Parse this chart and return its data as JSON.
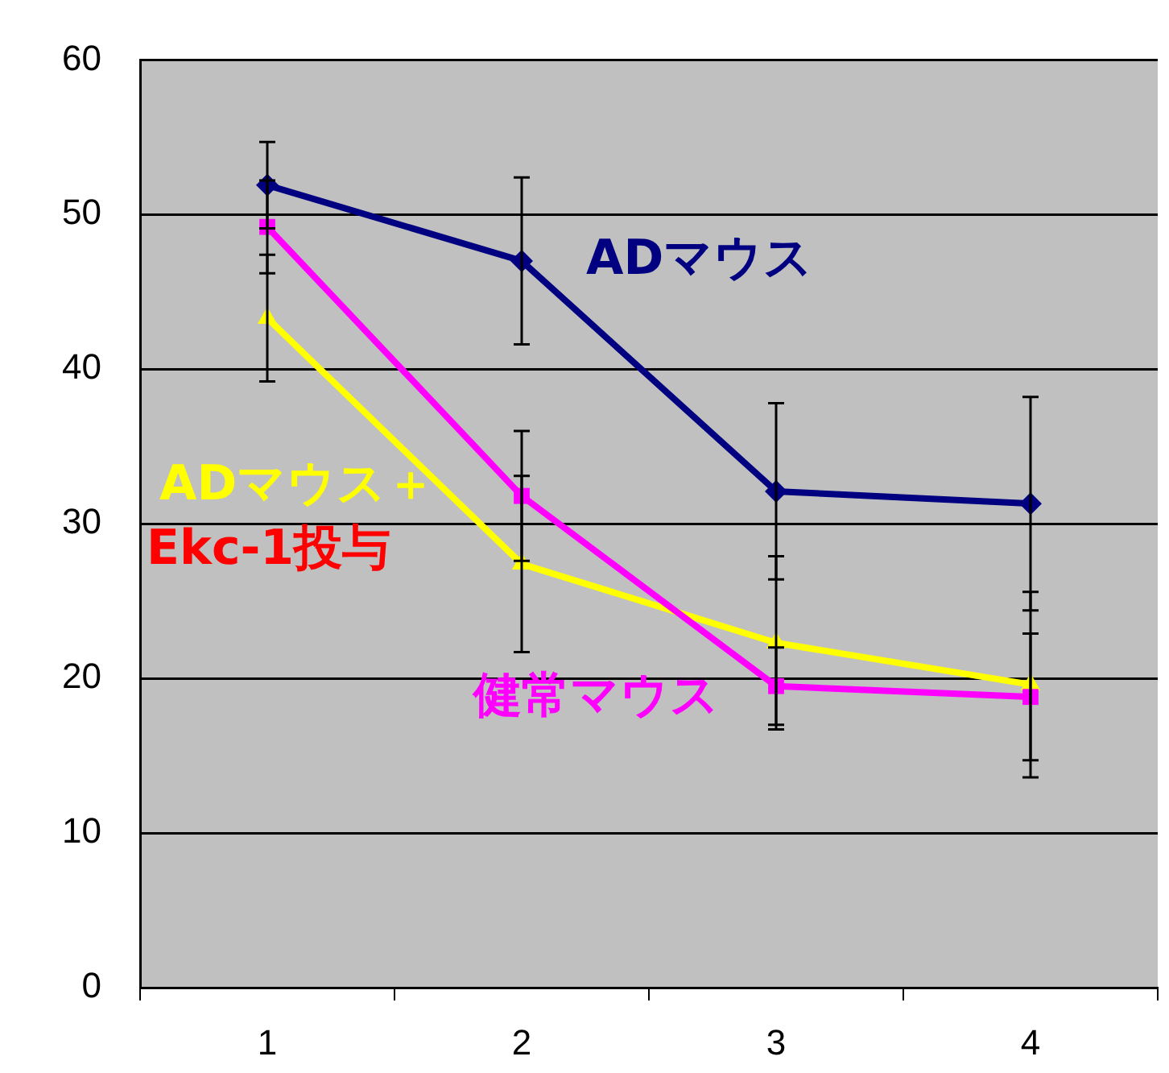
{
  "chart_data": {
    "type": "line",
    "categories": [
      "1",
      "2",
      "3",
      "4"
    ],
    "series": [
      {
        "name": "ADマウス",
        "color": "#000080",
        "marker": "diamond",
        "values": [
          51.9,
          47.0,
          32.1,
          31.3
        ],
        "errors": [
          2.8,
          5.4,
          5.7,
          6.9
        ]
      },
      {
        "name": "健常マウス",
        "color": "#ff00ff",
        "marker": "square",
        "values": [
          49.2,
          31.8,
          19.5,
          18.8
        ],
        "errors": [
          3.0,
          4.2,
          2.5,
          4.1
        ]
      },
      {
        "name": "ADマウス＋Ekc-1投与",
        "color": "#ffff00",
        "marker": "triangle",
        "values": [
          43.3,
          27.4,
          22.3,
          19.6
        ],
        "errors": [
          4.1,
          5.7,
          5.6,
          6.0
        ]
      }
    ],
    "ylim": [
      0,
      60
    ],
    "yticks": [
      0,
      10,
      20,
      30,
      40,
      50,
      60
    ],
    "grid": "y",
    "legend": false
  }
}
